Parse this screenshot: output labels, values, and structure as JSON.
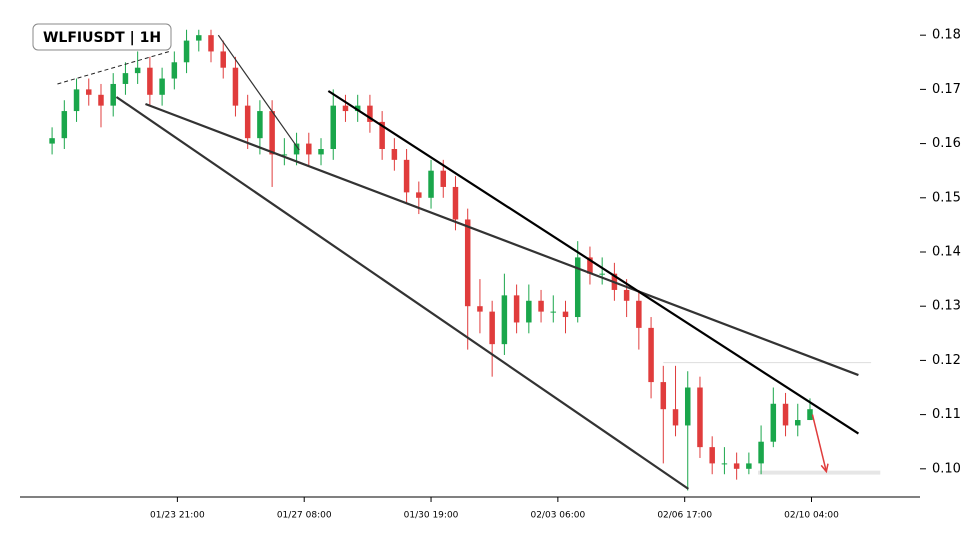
{
  "chart_data": {
    "type": "candlestick",
    "title": "WLFIUSDT | 1H",
    "up_color": "#1aa64b",
    "down_color": "#e03c3c",
    "x": [
      -82,
      -74,
      -66,
      -58,
      -50,
      -42,
      -34,
      -26,
      -18,
      -10,
      -2,
      6,
      14,
      22,
      30,
      38,
      46,
      54,
      62,
      70,
      78,
      86,
      94,
      102,
      110,
      118,
      126,
      134,
      142,
      150,
      158,
      166,
      174,
      182,
      190,
      198,
      206,
      214,
      222,
      230,
      238,
      246,
      254,
      262,
      270,
      278,
      286,
      294,
      302,
      310,
      318,
      326,
      334,
      342,
      350,
      358,
      366,
      374,
      382,
      390,
      398,
      406,
      414
    ],
    "open": [
      0.16,
      0.161,
      0.166,
      0.17,
      0.169,
      0.167,
      0.171,
      0.173,
      0.174,
      0.169,
      0.172,
      0.175,
      0.179,
      0.18,
      0.177,
      0.174,
      0.167,
      0.161,
      0.166,
      0.158,
      0.158,
      0.16,
      0.158,
      0.159,
      0.167,
      0.166,
      0.167,
      0.164,
      0.159,
      0.157,
      0.151,
      0.15,
      0.155,
      0.152,
      0.146,
      0.13,
      0.129,
      0.123,
      0.132,
      0.127,
      0.131,
      0.129,
      0.129,
      0.128,
      0.139,
      0.136,
      0.136,
      0.133,
      0.131,
      0.126,
      0.116,
      0.111,
      0.108,
      0.115,
      0.104,
      0.101,
      0.101,
      0.1,
      0.101,
      0.105,
      0.112,
      0.108,
      0.109
    ],
    "high": [
      0.163,
      0.168,
      0.172,
      0.172,
      0.171,
      0.173,
      0.175,
      0.177,
      0.176,
      0.174,
      0.177,
      0.181,
      0.181,
      0.181,
      0.179,
      0.176,
      0.169,
      0.168,
      0.168,
      0.161,
      0.162,
      0.162,
      0.161,
      0.17,
      0.169,
      0.169,
      0.169,
      0.166,
      0.161,
      0.159,
      0.153,
      0.157,
      0.157,
      0.154,
      0.148,
      0.135,
      0.131,
      0.136,
      0.134,
      0.134,
      0.133,
      0.132,
      0.131,
      0.142,
      0.141,
      0.139,
      0.138,
      0.135,
      0.133,
      0.128,
      0.119,
      0.119,
      0.118,
      0.117,
      0.106,
      0.104,
      0.103,
      0.103,
      0.108,
      0.115,
      0.114,
      0.112,
      0.113
    ],
    "low": [
      0.158,
      0.159,
      0.164,
      0.167,
      0.163,
      0.165,
      0.169,
      0.171,
      0.167,
      0.167,
      0.17,
      0.173,
      0.177,
      0.175,
      0.172,
      0.165,
      0.159,
      0.158,
      0.152,
      0.156,
      0.156,
      0.156,
      0.156,
      0.157,
      0.164,
      0.164,
      0.162,
      0.157,
      0.155,
      0.149,
      0.147,
      0.148,
      0.15,
      0.144,
      0.122,
      0.125,
      0.117,
      0.121,
      0.125,
      0.125,
      0.127,
      0.127,
      0.125,
      0.127,
      0.134,
      0.134,
      0.131,
      0.128,
      0.122,
      0.113,
      0.101,
      0.106,
      0.096,
      0.102,
      0.099,
      0.099,
      0.098,
      0.099,
      0.099,
      0.104,
      0.106,
      0.106,
      0.109
    ],
    "close": [
      0.161,
      0.166,
      0.17,
      0.169,
      0.167,
      0.171,
      0.173,
      0.174,
      0.169,
      0.172,
      0.175,
      0.179,
      0.18,
      0.177,
      0.174,
      0.167,
      0.161,
      0.166,
      0.158,
      0.158,
      0.16,
      0.158,
      0.159,
      0.167,
      0.166,
      0.167,
      0.164,
      0.159,
      0.157,
      0.151,
      0.15,
      0.155,
      0.152,
      0.146,
      0.13,
      0.129,
      0.123,
      0.132,
      0.127,
      0.131,
      0.129,
      0.129,
      0.128,
      0.139,
      0.136,
      0.136,
      0.133,
      0.131,
      0.126,
      0.116,
      0.111,
      0.108,
      0.115,
      0.104,
      0.101,
      0.101,
      0.1,
      0.101,
      0.105,
      0.112,
      0.108,
      0.109,
      0.111
    ],
    "trend_lines": [
      {
        "x": [
          -78.5,
          -3.9
        ],
        "y": [
          0.171,
          0.1771
        ],
        "color": "#222222",
        "width": 1,
        "dash": true
      },
      {
        "x": [
          26.8,
          79.8
        ],
        "y": [
          0.18,
          0.1588
        ],
        "color": "#333333",
        "width": 1.2,
        "dash": false
      },
      {
        "x": [
          -39.9,
          334.4
        ],
        "y": [
          0.1686,
          0.0963
        ],
        "color": "#333333",
        "width": 2.2,
        "dash": false
      },
      {
        "x": [
          -20.9,
          445.7
        ],
        "y": [
          0.1673,
          0.1173
        ],
        "color": "#333333",
        "width": 2.2,
        "dash": false
      },
      {
        "x": [
          98.8,
          445.7
        ],
        "y": [
          0.1697,
          0.1065
        ],
        "color": "#000000",
        "width": 2.2,
        "dash": false
      }
    ],
    "levels": [
      {
        "x": [
          318,
          454
        ],
        "y": 0.1196,
        "color": "#dddddd"
      },
      {
        "x": [
          380,
          460
        ],
        "y": 0.0993,
        "color": "#e6e6e6"
      }
    ],
    "arrow": {
      "x": [
        415.6,
        424.7
      ],
      "y": [
        0.11,
        0.0995
      ],
      "color": "#e03c3c"
    },
    "xlim": [
      -103,
      486
    ],
    "ylim": [
      0.0948,
      0.1828
    ],
    "xticks": [
      {
        "value": 0,
        "label": "01/23 21:00"
      },
      {
        "value": 83,
        "label": "01/27 08:00"
      },
      {
        "value": 166,
        "label": "01/30 19:00"
      },
      {
        "value": 249,
        "label": "02/03 06:00"
      },
      {
        "value": 332,
        "label": "02/06 17:00"
      },
      {
        "value": 415,
        "label": "02/10 04:00"
      }
    ],
    "yticks": [
      {
        "value": 0.1,
        "label": "0.10"
      },
      {
        "value": 0.11,
        "label": "0.11"
      },
      {
        "value": 0.12,
        "label": "0.12"
      },
      {
        "value": 0.13,
        "label": "0.13"
      },
      {
        "value": 0.14,
        "label": "0.14"
      },
      {
        "value": 0.15,
        "label": "0.15"
      },
      {
        "value": 0.16,
        "label": "0.16"
      },
      {
        "value": 0.17,
        "label": "0.17"
      },
      {
        "value": 0.18,
        "label": "0.18"
      }
    ]
  }
}
